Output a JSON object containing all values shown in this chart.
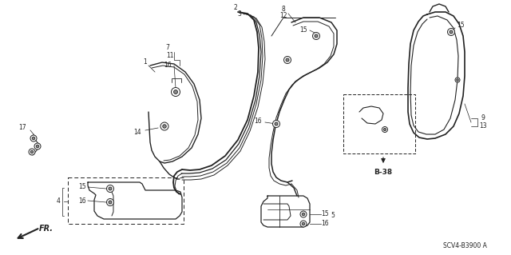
{
  "diagram_code": "SCV4-B3900 A",
  "bg_color": "#ffffff",
  "line_color": "#222222",
  "figsize": [
    6.4,
    3.19
  ],
  "dpi": 100
}
